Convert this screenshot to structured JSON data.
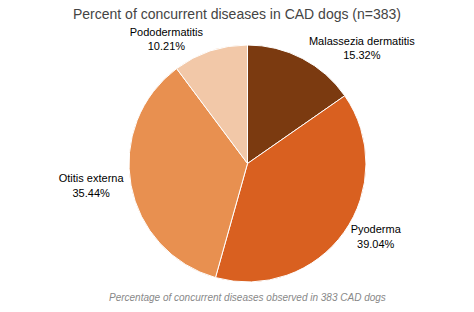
{
  "chart_data": {
    "type": "pie",
    "title": "Percent of concurrent diseases in CAD dogs (n=383)",
    "caption": "Percentage of concurrent diseases observed in 383 CAD dogs",
    "categories": [
      "Malassezia dermatitis",
      "Pyoderma",
      "Otitis externa",
      "Pododermatitis"
    ],
    "values": [
      15.32,
      39.04,
      35.44,
      10.21
    ],
    "value_labels": [
      "15.32%",
      "39.04%",
      "35.44%",
      "10.21%"
    ],
    "colors": [
      "#7B3A10",
      "#D96020",
      "#E89050",
      "#F2C8A8"
    ],
    "data_labels": true
  }
}
